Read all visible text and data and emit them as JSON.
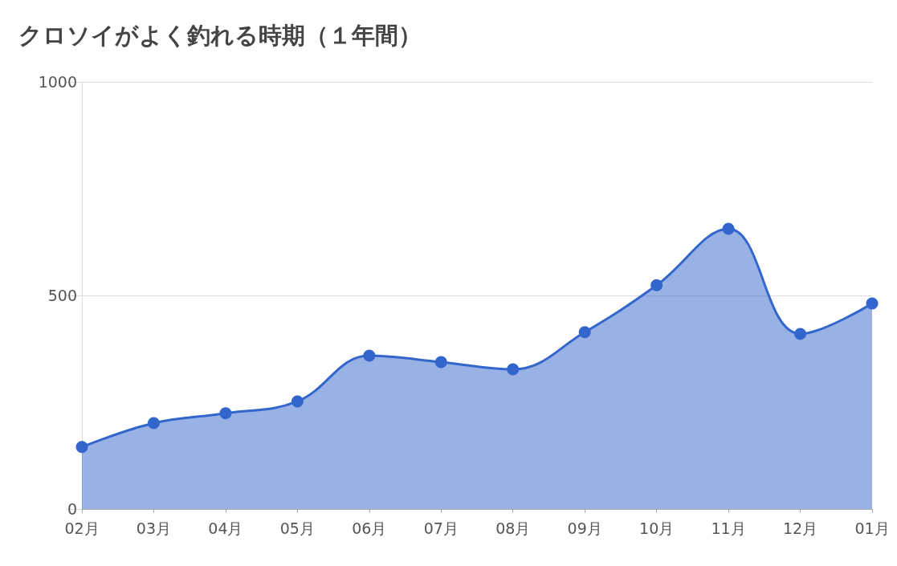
{
  "chart_data": {
    "type": "area",
    "title": "クロソイがよく釣れる時期（１年間）",
    "categories": [
      "02月",
      "03月",
      "04月",
      "05月",
      "06月",
      "07月",
      "08月",
      "09月",
      "10月",
      "11月",
      "12月",
      "01月"
    ],
    "series": [
      {
        "color": "#3366cc",
        "values": [
          145,
          201,
          224,
          252,
          359,
          344,
          327,
          414,
          524,
          656,
          410,
          481
        ]
      }
    ],
    "ylim": [
      0,
      1000
    ],
    "yticks": [
      0,
      500,
      1000
    ],
    "grid": "y",
    "marker": "circle",
    "line_style": "solid"
  }
}
